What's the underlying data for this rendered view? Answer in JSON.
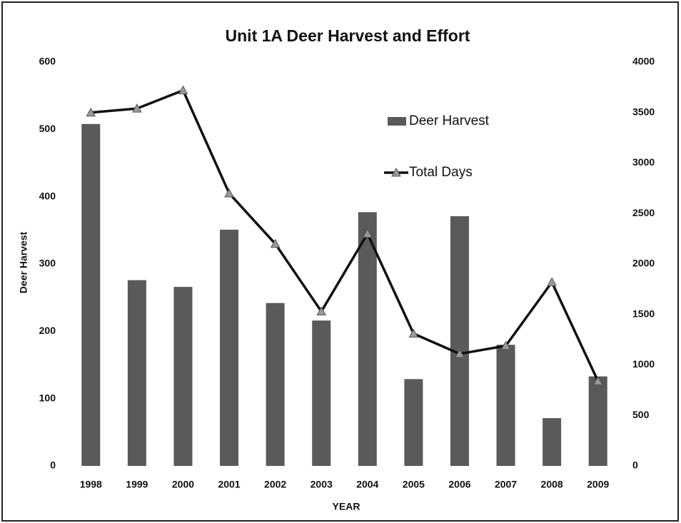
{
  "chart_data": {
    "type": "bar-line",
    "title": "Unit 1A Deer Harvest and Effort",
    "x_label": "YEAR",
    "y_label": "Deer Harvest",
    "categories": [
      "1998",
      "1999",
      "2000",
      "2001",
      "2002",
      "2003",
      "2004",
      "2005",
      "2006",
      "2007",
      "2008",
      "2009"
    ],
    "series": [
      {
        "name": "Deer Harvest",
        "type": "bar",
        "color": "#5a5a5a",
        "values": [
          508,
          276,
          266,
          351,
          242,
          216,
          377,
          129,
          371,
          180,
          71,
          133
        ]
      },
      {
        "name": "Total Days",
        "type": "line",
        "axis": "y2",
        "color": "#111111",
        "marker_color": "#9a9a9a",
        "values": [
          3500,
          3540,
          3720,
          2700,
          2200,
          1530,
          2300,
          1310,
          1110,
          1190,
          1820,
          840
        ]
      }
    ],
    "ylim": [
      0,
      600
    ],
    "yticks": [
      0,
      100,
      200,
      300,
      400,
      500,
      600
    ],
    "y2lim": [
      0,
      4000
    ],
    "y2ticks": [
      0,
      500,
      1000,
      1500,
      2000,
      2500,
      3000,
      3500,
      4000
    ],
    "grid": false
  }
}
